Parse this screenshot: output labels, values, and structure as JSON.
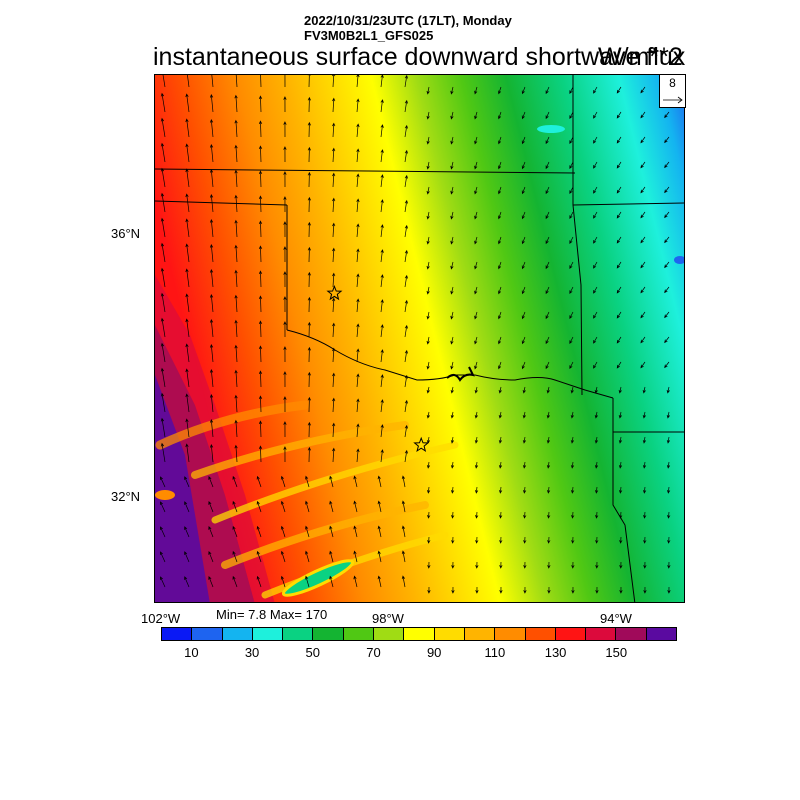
{
  "header": {
    "line1": "2022/10/31/23UTC (17LT), Monday",
    "line2": "FV3M0B2L1_GFS025",
    "title": "instantaneous surface downward shortwave flux",
    "units": "W/m**2"
  },
  "reference_vector": {
    "label": "8"
  },
  "lat_labels": [
    "36°N",
    "32°N"
  ],
  "lon_labels": [
    "102°W",
    "98°W",
    "94°W"
  ],
  "stats": "Min= 7.8 Max= 170",
  "colorbar": {
    "colors": [
      "#0a19f5",
      "#1e64f0",
      "#14b4f0",
      "#1ef0dc",
      "#0ad282",
      "#14b432",
      "#50c814",
      "#a0dc14",
      "#ffff00",
      "#ffdc00",
      "#ffb400",
      "#ff8c00",
      "#ff5000",
      "#ff1414",
      "#dc0a3c",
      "#a00a5a",
      "#5a0aa0"
    ],
    "labels": [
      "10",
      "30",
      "50",
      "70",
      "90",
      "110",
      "130",
      "150"
    ]
  },
  "map": {
    "stars": [
      {
        "lon": -98.9,
        "lat": 35.1
      },
      {
        "lon": -97.4,
        "lat": 32.8
      }
    ]
  }
}
